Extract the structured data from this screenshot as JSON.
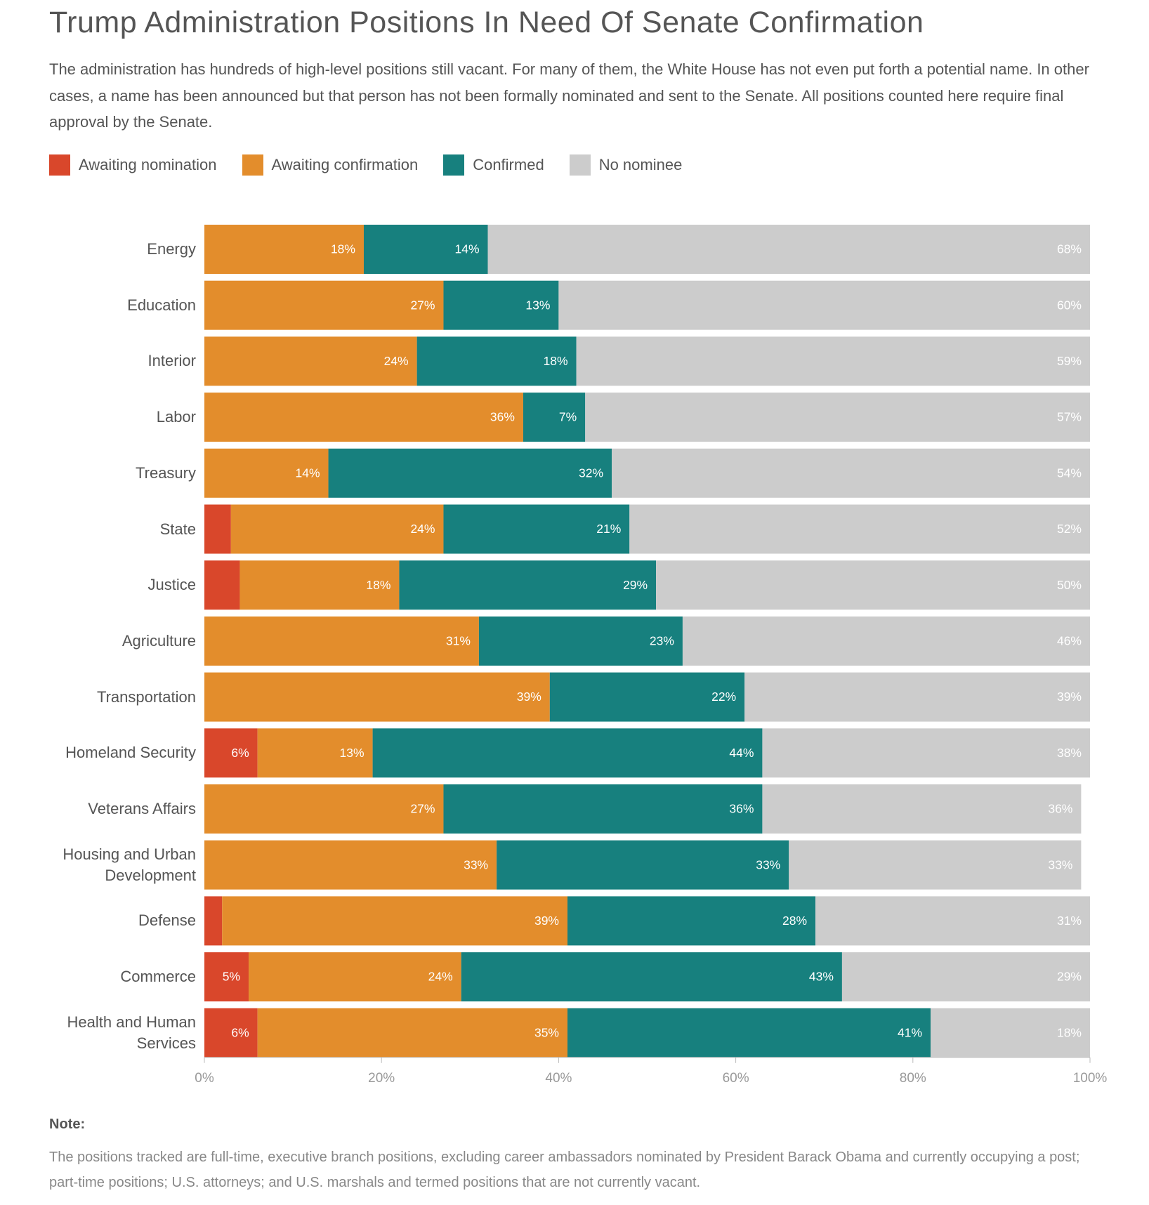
{
  "chart_data": {
    "type": "stacked-bar-horizontal",
    "title": "Trump Administration Positions In Need Of Senate Confirmation",
    "subtitle": "The administration has hundreds of high-level positions still vacant. For many of them, the White House has not even put forth a potential name. In other cases, a name has been announced but that person has not been formally nominated and sent to the Senate. All positions counted here require final approval by the Senate.",
    "note_title": "Note:",
    "note": "The positions tracked are full-time, executive branch positions, excluding career ambassadors nominated by President Barack Obama and currently occupying a post; part-time positions; U.S. attorneys; and U.S. marshals and termed positions that are not currently vacant.",
    "categories": [
      "Energy",
      "Education",
      "Interior",
      "Labor",
      "Treasury",
      "State",
      "Justice",
      "Agriculture",
      "Transportation",
      "Homeland Security",
      "Veterans Affairs",
      "Housing and Urban Development",
      "Defense",
      "Commerce",
      "Health and Human Services"
    ],
    "series": [
      {
        "name": "Awaiting nomination",
        "color": "#d9472b",
        "values": [
          0,
          0,
          0,
          0,
          0,
          3,
          4,
          0,
          0,
          6,
          0,
          0,
          2,
          5,
          6
        ],
        "value_labels": [
          null,
          null,
          null,
          null,
          null,
          null,
          null,
          null,
          null,
          "6%",
          null,
          null,
          null,
          "5%",
          "6%"
        ]
      },
      {
        "name": "Awaiting confirmation",
        "color": "#e38d2c",
        "values": [
          18,
          27,
          24,
          36,
          14,
          24,
          18,
          31,
          39,
          13,
          27,
          33,
          39,
          24,
          35
        ],
        "value_labels": [
          "18%",
          "27%",
          "24%",
          "36%",
          "14%",
          "24%",
          "18%",
          "31%",
          "39%",
          "13%",
          "27%",
          "33%",
          "39%",
          "24%",
          "35%"
        ]
      },
      {
        "name": "Confirmed",
        "color": "#17807e",
        "values": [
          14,
          13,
          18,
          7,
          32,
          21,
          29,
          23,
          22,
          44,
          36,
          33,
          28,
          43,
          41
        ],
        "value_labels": [
          "14%",
          "13%",
          "18%",
          "7%",
          "32%",
          "21%",
          "29%",
          "23%",
          "22%",
          "44%",
          "36%",
          "33%",
          "28%",
          "43%",
          "41%"
        ]
      },
      {
        "name": "No nominee",
        "color": "#cccccc",
        "values": [
          68,
          60,
          59,
          57,
          54,
          52,
          50,
          46,
          39,
          38,
          36,
          33,
          31,
          29,
          18
        ],
        "value_labels": [
          "68%",
          "60%",
          "59%",
          "57%",
          "54%",
          "52%",
          "50%",
          "46%",
          "39%",
          "38%",
          "36%",
          "33%",
          "31%",
          "29%",
          "18%"
        ]
      }
    ],
    "xlim": [
      0,
      100
    ],
    "xticks": [
      {
        "value": 0,
        "label": "0%"
      },
      {
        "value": 20,
        "label": "20%"
      },
      {
        "value": 40,
        "label": "40%"
      },
      {
        "value": 60,
        "label": "60%"
      },
      {
        "value": 80,
        "label": "80%"
      },
      {
        "value": 100,
        "label": "100%"
      }
    ]
  }
}
